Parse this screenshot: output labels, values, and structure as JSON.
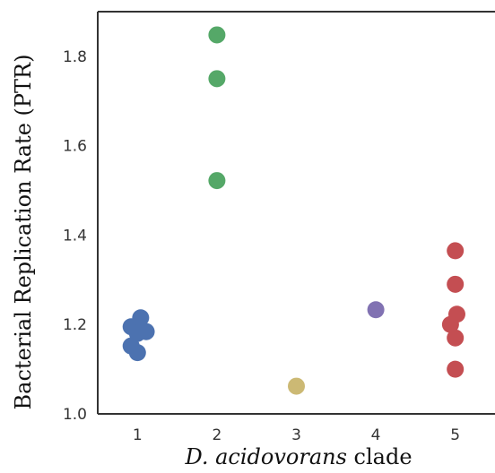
{
  "chart_data": {
    "type": "scatter",
    "title": "",
    "xlabel": {
      "italic_part": "D. acidovorans",
      "rest": " clade"
    },
    "ylabel": "Bacterial Replication Rate (PTR)",
    "xlim": [
      0.5,
      5.5
    ],
    "ylim": [
      1.0,
      1.9
    ],
    "x_ticks": [
      1,
      2,
      3,
      4,
      5
    ],
    "y_ticks": [
      1.0,
      1.2,
      1.4,
      1.6,
      1.8
    ],
    "y_tick_labels": [
      "1.0",
      "1.2",
      "1.4",
      "1.6",
      "1.8"
    ],
    "grid": false,
    "series": [
      {
        "clade": 1,
        "color": "#4c72b0",
        "points": [
          {
            "x": 0.92,
            "y": 1.195
          },
          {
            "x": 1.04,
            "y": 1.215
          },
          {
            "x": 1.0,
            "y": 1.18
          },
          {
            "x": 1.11,
            "y": 1.184
          },
          {
            "x": 0.92,
            "y": 1.152
          },
          {
            "x": 1.0,
            "y": 1.137
          }
        ]
      },
      {
        "clade": 2,
        "color": "#55a868",
        "points": [
          {
            "x": 2.0,
            "y": 1.848
          },
          {
            "x": 2.0,
            "y": 1.75
          },
          {
            "x": 2.0,
            "y": 1.522
          }
        ]
      },
      {
        "clade": 3,
        "color": "#ccb974",
        "points": [
          {
            "x": 3.0,
            "y": 1.062
          }
        ]
      },
      {
        "clade": 4,
        "color": "#8172b2",
        "points": [
          {
            "x": 4.0,
            "y": 1.233
          }
        ]
      },
      {
        "clade": 5,
        "color": "#c44e52",
        "points": [
          {
            "x": 5.0,
            "y": 1.365
          },
          {
            "x": 5.0,
            "y": 1.29
          },
          {
            "x": 5.02,
            "y": 1.223
          },
          {
            "x": 4.94,
            "y": 1.2
          },
          {
            "x": 5.0,
            "y": 1.17
          },
          {
            "x": 5.0,
            "y": 1.1
          }
        ]
      }
    ]
  }
}
